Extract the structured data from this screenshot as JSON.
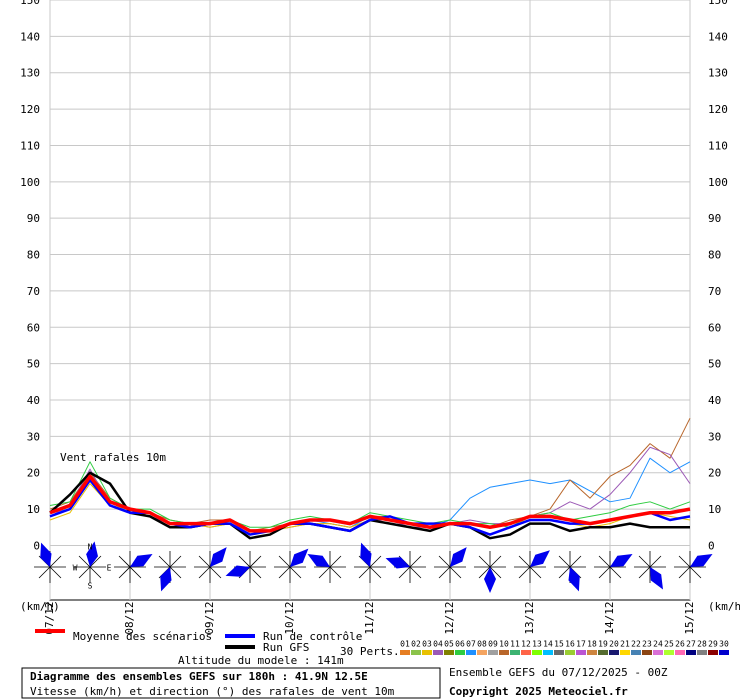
{
  "chart_data": {
    "type": "line",
    "annotation": "Vent rafales 10m",
    "y_unit_left": "(km/h)",
    "y_unit_right": "(km/h)",
    "x": [
      0,
      6,
      12,
      18,
      24,
      30,
      36,
      42,
      48,
      54,
      60,
      66,
      72,
      78,
      84,
      90,
      96,
      102,
      108,
      114,
      120,
      126,
      132,
      138,
      144,
      150,
      156,
      162,
      168,
      174,
      180,
      186,
      192
    ],
    "xlim": [
      0,
      192
    ],
    "xticks": [
      {
        "value": 0,
        "label": "07/12"
      },
      {
        "value": 24,
        "label": "08/12"
      },
      {
        "value": 48,
        "label": "09/12"
      },
      {
        "value": 72,
        "label": "10/12"
      },
      {
        "value": 96,
        "label": "11/12"
      },
      {
        "value": 120,
        "label": "12/12"
      },
      {
        "value": 144,
        "label": "13/12"
      },
      {
        "value": 168,
        "label": "14/12"
      },
      {
        "value": 192,
        "label": "15/12"
      }
    ],
    "ylim": [
      -15,
      150
    ],
    "yticks": [
      0,
      10,
      20,
      30,
      40,
      50,
      60,
      70,
      80,
      90,
      100,
      110,
      120,
      130,
      140,
      150
    ],
    "grid": true,
    "perturbations": [
      {
        "color": "#1e90ff",
        "values": [
          9,
          10,
          18,
          12,
          9,
          8,
          6,
          6,
          6,
          7,
          4,
          4,
          6,
          7,
          6,
          5,
          8,
          7,
          6,
          5,
          7,
          13,
          16,
          17,
          18,
          17,
          18,
          15,
          12,
          13,
          24,
          20,
          23
        ]
      },
      {
        "color": "#b8662a",
        "values": [
          10,
          12,
          20,
          13,
          10,
          9,
          7,
          6,
          7,
          7,
          4,
          5,
          6,
          7,
          7,
          6,
          8,
          8,
          6,
          5,
          6,
          6,
          5,
          7,
          8,
          10,
          18,
          13,
          19,
          22,
          28,
          24,
          35
        ]
      },
      {
        "color": "#9b59b6",
        "values": [
          8,
          11,
          21,
          11,
          9,
          8,
          6,
          6,
          5,
          6,
          4,
          4,
          5,
          6,
          6,
          5,
          7,
          7,
          5,
          5,
          6,
          7,
          6,
          6,
          8,
          9,
          12,
          10,
          14,
          20,
          27,
          25,
          17
        ]
      },
      {
        "color": "#2ecc40",
        "values": [
          11,
          12,
          23,
          13,
          10,
          10,
          7,
          6,
          6,
          7,
          5,
          5,
          7,
          8,
          7,
          6,
          9,
          8,
          7,
          6,
          7,
          6,
          6,
          5,
          8,
          9,
          7,
          8,
          9,
          11,
          12,
          10,
          12
        ]
      },
      {
        "color": "#e8c100",
        "values": [
          7,
          9,
          17,
          11,
          10,
          8,
          5,
          6,
          5,
          6,
          3,
          4,
          5,
          6,
          6,
          5,
          7,
          6,
          5,
          4,
          6,
          6,
          5,
          6,
          7,
          7,
          6,
          5,
          6,
          8,
          9,
          8,
          7
        ]
      }
    ],
    "series": [
      {
        "name": "Moyenne des scénarios",
        "color": "#ff0000",
        "values": [
          9,
          11,
          19,
          12,
          10,
          9,
          6,
          6,
          6,
          7,
          4,
          4,
          6,
          7,
          7,
          6,
          8,
          7,
          6,
          5,
          6,
          6,
          5,
          6,
          8,
          8,
          7,
          6,
          7,
          8,
          9,
          9,
          10
        ]
      },
      {
        "name": "Run de contrôle",
        "color": "#0000ff",
        "values": [
          8,
          10,
          18,
          11,
          9,
          9,
          6,
          5,
          6,
          6,
          3,
          4,
          6,
          6,
          5,
          4,
          7,
          8,
          6,
          6,
          6,
          5,
          3,
          5,
          7,
          7,
          6,
          6,
          7,
          8,
          9,
          7,
          8
        ]
      },
      {
        "name": "Run GFS",
        "color": "#000000",
        "values": [
          9,
          14,
          20,
          17,
          9,
          8,
          5,
          5,
          6,
          6,
          2,
          3,
          6,
          6,
          5,
          4,
          7,
          6,
          5,
          4,
          6,
          5,
          2,
          3,
          6,
          6,
          4,
          5,
          5,
          6,
          5,
          5,
          5
        ]
      }
    ],
    "compass": {
      "n": "N",
      "w": "W",
      "e": "E",
      "s": "S"
    },
    "wind_x": [
      0,
      12,
      24,
      36,
      48,
      60,
      72,
      84,
      96,
      108,
      120,
      132,
      144,
      156,
      168,
      180,
      192
    ],
    "wind_directions": [
      340,
      10,
      60,
      200,
      40,
      250,
      45,
      300,
      340,
      290,
      40,
      180,
      50,
      160,
      60,
      150,
      60
    ],
    "perts_label": "30 Perts.",
    "perts_legend": {
      "labels": [
        "01",
        "02",
        "03",
        "04",
        "05",
        "06",
        "07",
        "08",
        "09",
        "10",
        "11",
        "12",
        "13",
        "14",
        "15",
        "16",
        "17",
        "18",
        "19",
        "20",
        "21",
        "22",
        "23",
        "24",
        "25",
        "26",
        "27",
        "28",
        "29",
        "30"
      ],
      "colors": [
        "#e67e22",
        "#8bc34a",
        "#e8c100",
        "#9b59b6",
        "#808000",
        "#2ecc40",
        "#1e90ff",
        "#f4a460",
        "#a0a0a0",
        "#b8662a",
        "#3cb371",
        "#ff6347",
        "#7fff00",
        "#00bfff",
        "#696969",
        "#9acd32",
        "#ba55d3",
        "#cd853f",
        "#556b2f",
        "#191970",
        "#ffd700",
        "#4682b4",
        "#8b4513",
        "#da70d6",
        "#adff2f",
        "#ff69b4",
        "#000080",
        "#808080",
        "#8b0000",
        "#0000cd"
      ]
    },
    "altitude": "Altitude du modele : 141m",
    "title": "Diagramme des ensembles GEFS sur 180h : 41.9N 12.5E",
    "subtitle": "Vitesse (km/h) et direction (°) des rafales de vent 10m",
    "run_info": "Ensemble GEFS du 07/12/2025 - 00Z",
    "copyright": "Copyright 2025 Meteociel.fr"
  }
}
